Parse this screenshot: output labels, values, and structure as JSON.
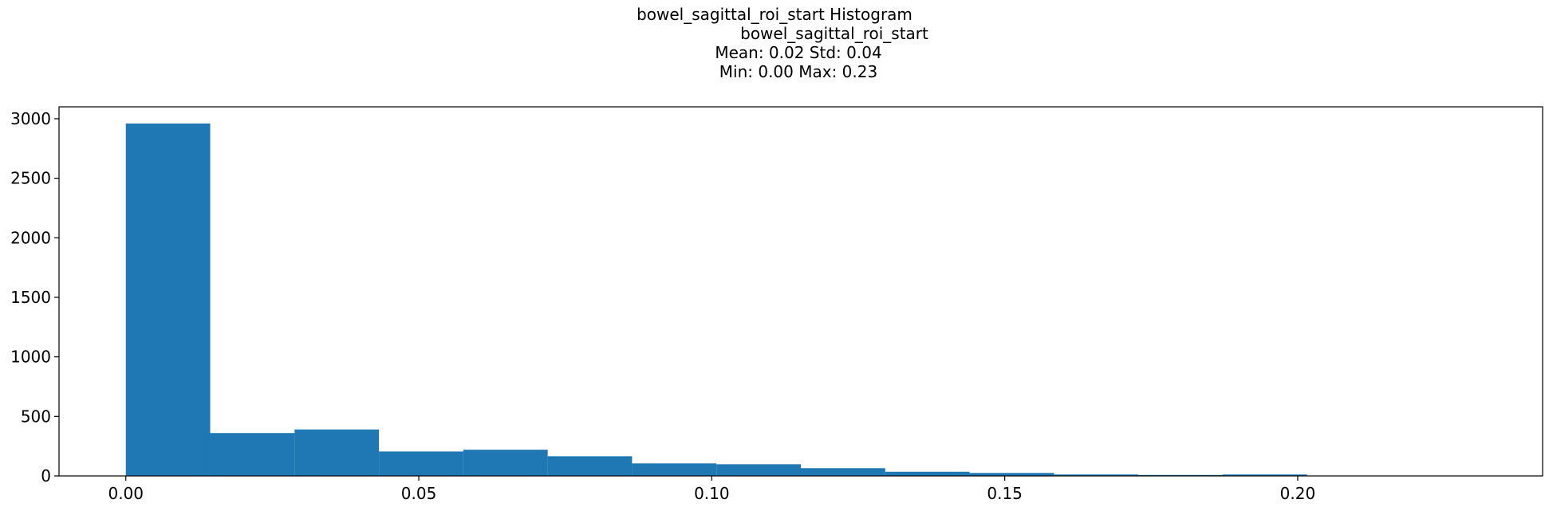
{
  "chart_data": {
    "type": "bar",
    "title_lines": [
      "bowel_sagittal_roi_start Histogram",
      "bowel_sagittal_roi_start",
      "Mean: 0.02 Std: 0.04",
      "Min: 0.00 Max: 0.23"
    ],
    "xlabel": "",
    "ylabel": "",
    "bin_edges": [
      0.0,
      0.0144,
      0.0288,
      0.0432,
      0.0576,
      0.072,
      0.0864,
      0.1008,
      0.1152,
      0.1296,
      0.144,
      0.1584,
      0.1728,
      0.1872,
      0.2016,
      0.216,
      0.2304
    ],
    "values": [
      2960,
      360,
      390,
      205,
      220,
      165,
      105,
      98,
      65,
      35,
      25,
      12,
      8,
      12,
      2,
      1
    ],
    "xlim": [
      -0.0114,
      0.2418
    ],
    "ylim": [
      0,
      3100
    ],
    "xticks": [
      0.0,
      0.05,
      0.1,
      0.15,
      0.2
    ],
    "xtick_labels": [
      "0.00",
      "0.05",
      "0.10",
      "0.15",
      "0.20"
    ],
    "yticks": [
      0,
      500,
      1000,
      1500,
      2000,
      2500,
      3000
    ],
    "ytick_labels": [
      "0",
      "500",
      "1000",
      "1500",
      "2000",
      "2500",
      "3000"
    ],
    "bar_color": "#1f77b4",
    "grid": false,
    "legend": "none"
  }
}
